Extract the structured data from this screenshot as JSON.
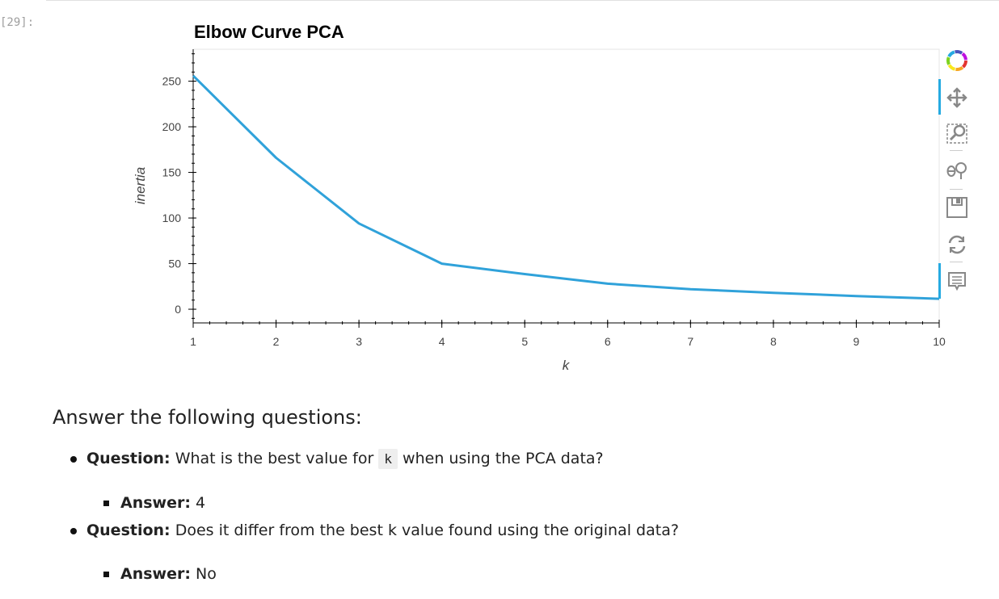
{
  "cell": {
    "prompt": "[29]:"
  },
  "chart_data": {
    "type": "line",
    "title": "Elbow Curve PCA",
    "xlabel": "k",
    "ylabel": "inertia",
    "x": [
      1,
      2,
      3,
      4,
      5,
      6,
      7,
      8,
      9,
      10
    ],
    "series": [
      {
        "values": [
          256,
          166,
          94,
          50,
          38.5,
          28,
          22,
          18,
          14.5,
          11.5
        ]
      }
    ],
    "xlim": [
      1,
      10
    ],
    "ylim": [
      -15,
      285
    ],
    "xticks": [
      1,
      2,
      3,
      4,
      5,
      6,
      7,
      8,
      9,
      10
    ],
    "yticks": [
      0,
      50,
      100,
      150,
      200,
      250
    ],
    "line_color": "#30a2da",
    "grid": false
  },
  "toolbar": {
    "tools": [
      "bokeh-logo-icon",
      "pan-icon",
      "box-zoom-icon",
      "wheel-zoom-icon",
      "save-icon",
      "reset-icon",
      "hover-icon"
    ]
  },
  "markdown": {
    "heading": "Answer the following questions:",
    "items": [
      {
        "question_label": "Question:",
        "question_pre": "What is the best value for",
        "question_code": "k",
        "question_post": "when using the PCA data?",
        "answer_label": "Answer:",
        "answer_text": "4"
      },
      {
        "question_label": "Question:",
        "question_text": "Does it differ from the best k value found using the original data?",
        "answer_label": "Answer:",
        "answer_text": "No"
      }
    ]
  }
}
